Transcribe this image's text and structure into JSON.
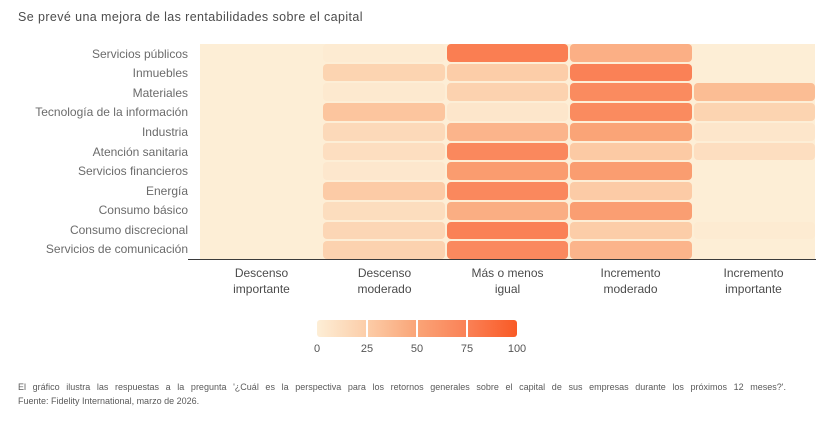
{
  "title": "Se prevé una mejora de las rentabilidades sobre el capital",
  "chart_data": {
    "type": "heatmap",
    "title": "Se prevé una mejora de las rentabilidades sobre el capital",
    "rows": [
      "Servicios públicos",
      "Inmuebles",
      "Materiales",
      "Tecnología de la información",
      "Industria",
      "Atención sanitaria",
      "Servicios financieros",
      "Energía",
      "Consumo básico",
      "Consumo discrecional",
      "Servicios de comunicación"
    ],
    "columns": [
      "Descenso importante",
      "Descenso moderado",
      "Más o menos igual",
      "Incremento moderado",
      "Incremento importante"
    ],
    "values": [
      [
        0,
        2,
        77,
        43,
        0
      ],
      [
        0,
        20,
        25,
        75,
        0
      ],
      [
        0,
        4,
        21,
        68,
        35
      ],
      [
        0,
        30,
        6,
        68,
        20
      ],
      [
        0,
        16,
        40,
        50,
        6
      ],
      [
        0,
        12,
        70,
        27,
        12
      ],
      [
        0,
        5,
        56,
        55,
        0
      ],
      [
        0,
        26,
        70,
        26,
        0
      ],
      [
        0,
        13,
        44,
        54,
        0
      ],
      [
        0,
        18,
        75,
        25,
        2
      ],
      [
        0,
        21,
        69,
        40,
        0
      ]
    ],
    "scale": {
      "min": 0,
      "max": 100,
      "ticks": [
        0,
        25,
        50,
        75,
        100
      ],
      "stop_colors": [
        "#FDEED6",
        "#FCCDA8",
        "#FAA477",
        "#FA8156",
        "#F95A26"
      ]
    },
    "legend_position": "bottom",
    "grid": false
  },
  "footnote": {
    "line1": "El gráfico ilustra las respuestas a la pregunta '¿Cuál es la perspectiva para los retornos generales sobre el capital de sus empresas durante los próximos 12 meses?'.",
    "line2": "Fuente: Fidelity International, marzo de 2026."
  }
}
